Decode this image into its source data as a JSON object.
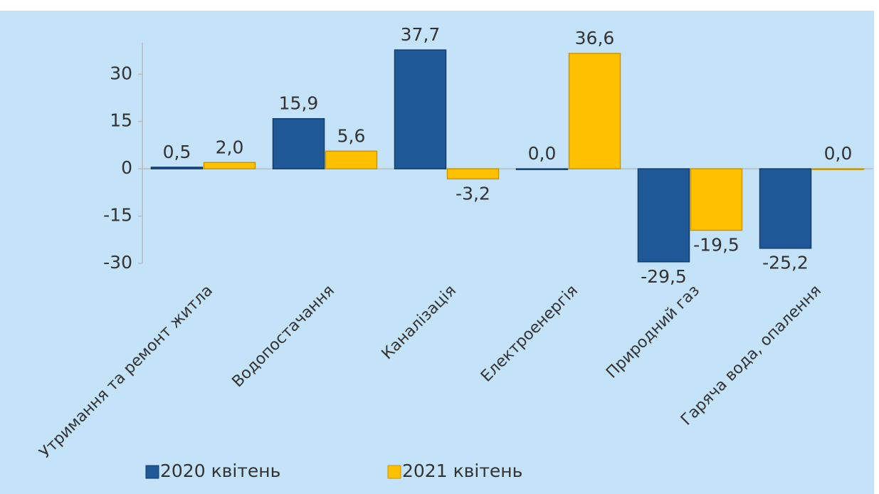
{
  "chart_data": {
    "type": "bar",
    "categories": [
      "Утримання та ремонт житла",
      "Водопостачання",
      "Каналізація",
      "Електроенергія",
      "Природний газ",
      "Гаряча вода, опалення"
    ],
    "series": [
      {
        "name": "2020 квітень",
        "color": "#1f5896",
        "values": [
          0.5,
          15.9,
          37.7,
          0.0,
          -29.5,
          -25.2
        ],
        "value_labels": [
          "0,5",
          "15,9",
          "37,7",
          "0,0",
          "-29,5",
          "-25,2"
        ]
      },
      {
        "name": "2021 квітень",
        "color": "#ffc000",
        "values": [
          2.0,
          5.6,
          -3.2,
          36.6,
          -19.5,
          0.0
        ],
        "value_labels": [
          "2,0",
          "5,6",
          "-3,2",
          "36,6",
          "-19,5",
          "0,0"
        ]
      }
    ],
    "ylim": [
      -30,
      40
    ],
    "yticks": [
      -30,
      -15,
      0,
      15,
      30
    ],
    "legend": "bottom"
  }
}
